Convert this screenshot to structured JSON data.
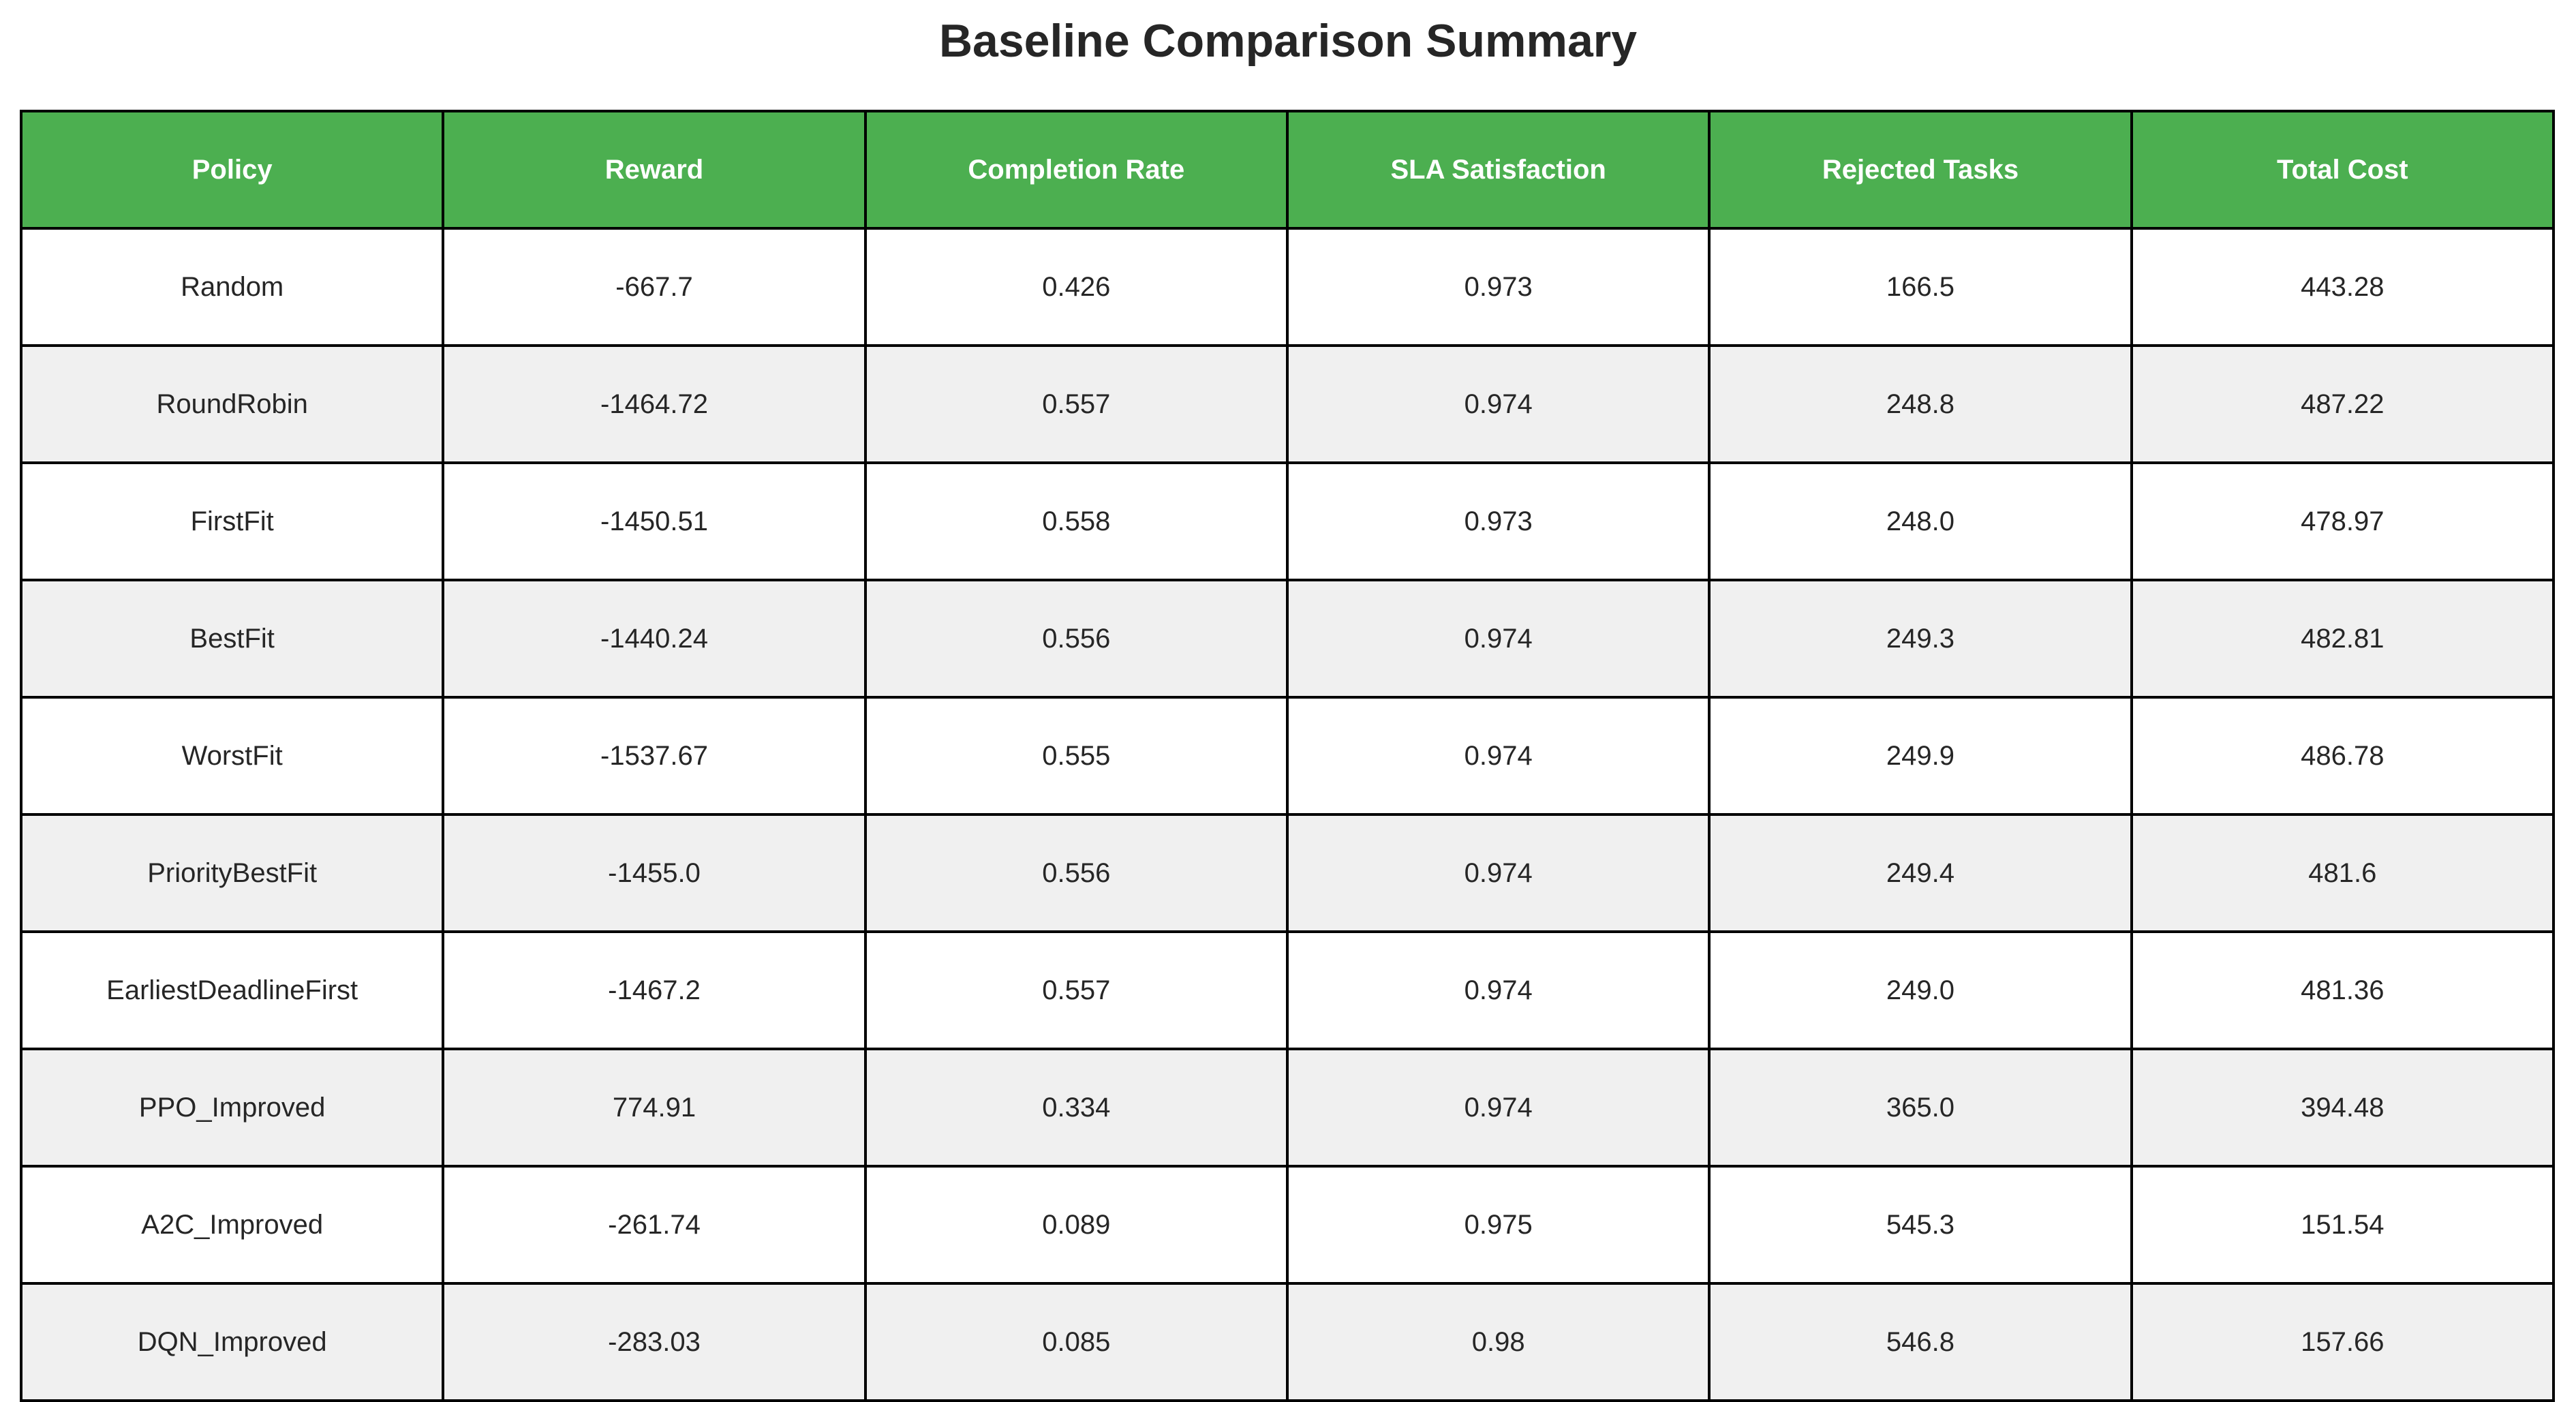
{
  "title": "Baseline Comparison Summary",
  "colors": {
    "header_bg": "#4caf50",
    "header_text": "#ffffff",
    "row_alt_bg": "#f0f0f0",
    "row_bg": "#ffffff",
    "border": "#000000"
  },
  "chart_data": {
    "type": "table",
    "title": "Baseline Comparison Summary",
    "columns": [
      "Policy",
      "Reward",
      "Completion Rate",
      "SLA Satisfaction",
      "Rejected Tasks",
      "Total Cost"
    ],
    "rows": [
      [
        "Random",
        "-667.7",
        "0.426",
        "0.973",
        "166.5",
        "443.28"
      ],
      [
        "RoundRobin",
        "-1464.72",
        "0.557",
        "0.974",
        "248.8",
        "487.22"
      ],
      [
        "FirstFit",
        "-1450.51",
        "0.558",
        "0.973",
        "248.0",
        "478.97"
      ],
      [
        "BestFit",
        "-1440.24",
        "0.556",
        "0.974",
        "249.3",
        "482.81"
      ],
      [
        "WorstFit",
        "-1537.67",
        "0.555",
        "0.974",
        "249.9",
        "486.78"
      ],
      [
        "PriorityBestFit",
        "-1455.0",
        "0.556",
        "0.974",
        "249.4",
        "481.6"
      ],
      [
        "EarliestDeadlineFirst",
        "-1467.2",
        "0.557",
        "0.974",
        "249.0",
        "481.36"
      ],
      [
        "PPO_Improved",
        "774.91",
        "0.334",
        "0.974",
        "365.0",
        "394.48"
      ],
      [
        "A2C_Improved",
        "-261.74",
        "0.089",
        "0.975",
        "545.3",
        "151.54"
      ],
      [
        "DQN_Improved",
        "-283.03",
        "0.085",
        "0.98",
        "546.8",
        "157.66"
      ]
    ]
  }
}
